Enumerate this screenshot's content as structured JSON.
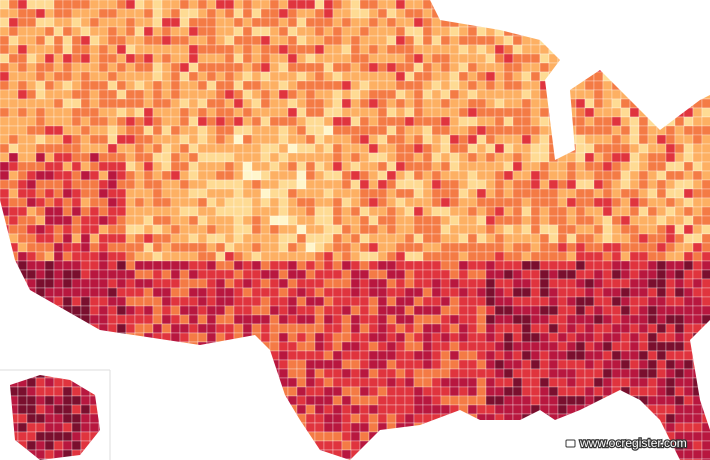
{
  "watermark": {
    "text": "www.ocregister.com"
  }
}
